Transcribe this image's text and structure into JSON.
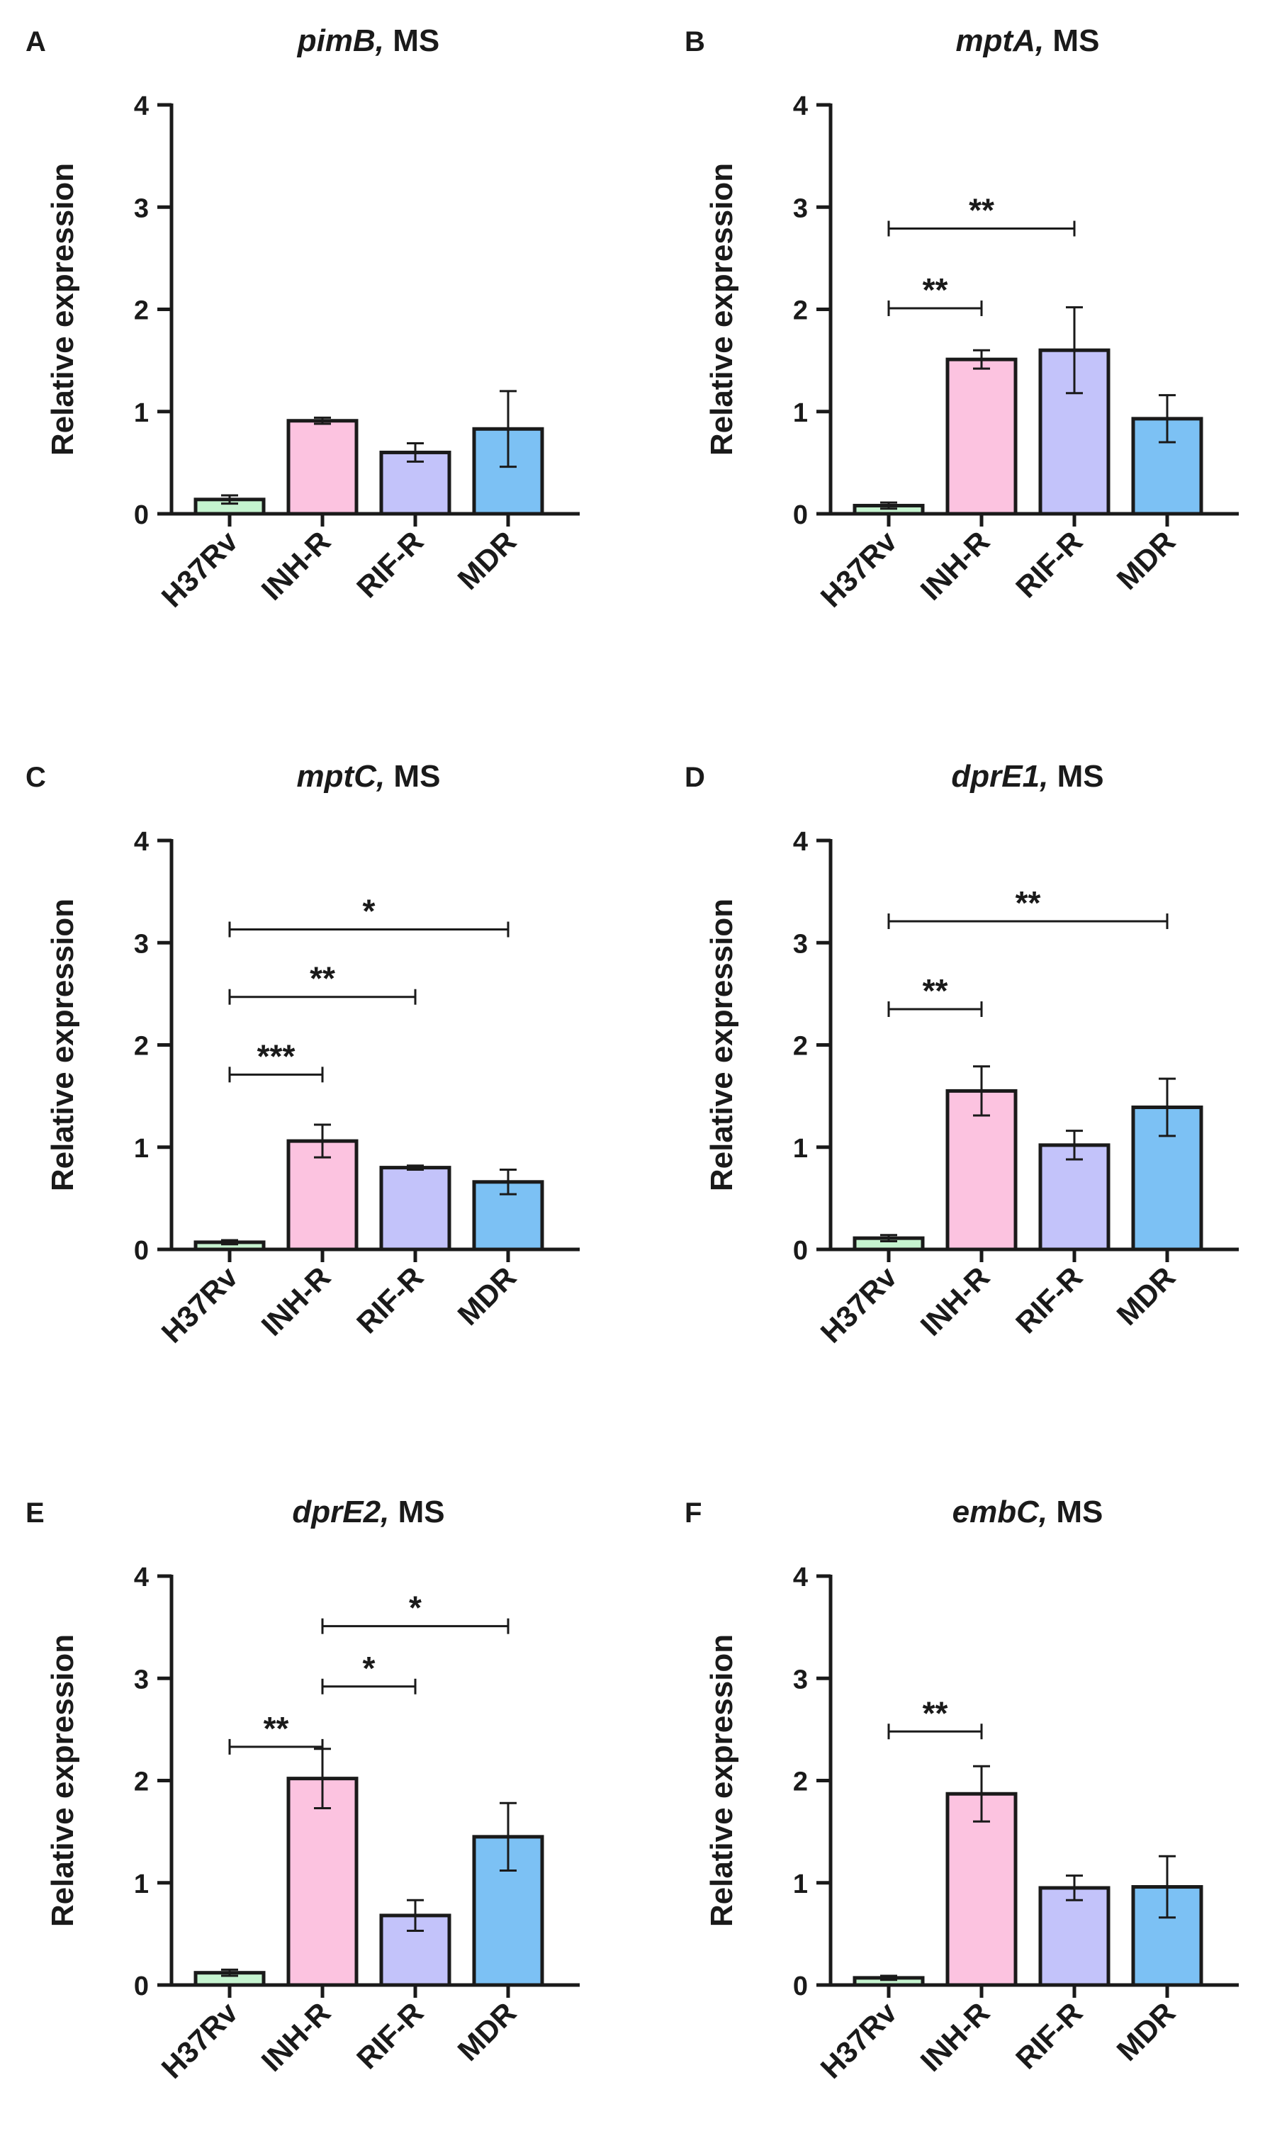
{
  "figure": {
    "ylabel": "Relative expression",
    "categories": [
      "H37Rv",
      "INH-R",
      "RIF-R",
      "MDR"
    ],
    "colors": {
      "H37Rv": "#c5f3cf",
      "INH-R": "#fcc3e0",
      "RIF-R": "#c3c3fa",
      "MDR": "#7cc1f4"
    }
  },
  "chart_data": [
    {
      "panel": "A",
      "type": "bar",
      "gene": "pimB,",
      "suffix": " MS",
      "ylabel": "Relative expression",
      "ylim": [
        0,
        4
      ],
      "yticks": [
        0,
        1,
        2,
        3,
        4
      ],
      "categories": [
        "H37Rv",
        "INH-R",
        "RIF-R",
        "MDR"
      ],
      "values": [
        0.14,
        0.91,
        0.6,
        0.83
      ],
      "errors": [
        0.04,
        0.03,
        0.09,
        0.37
      ],
      "significance": []
    },
    {
      "panel": "B",
      "type": "bar",
      "gene": "mptA,",
      "suffix": " MS",
      "ylabel": "Relative expression",
      "ylim": [
        0,
        4
      ],
      "yticks": [
        0,
        1,
        2,
        3,
        4
      ],
      "categories": [
        "H37Rv",
        "INH-R",
        "RIF-R",
        "MDR"
      ],
      "values": [
        0.08,
        1.51,
        1.6,
        0.93
      ],
      "errors": [
        0.03,
        0.09,
        0.42,
        0.23
      ],
      "significance": [
        {
          "from": 0,
          "to": 1,
          "y": 2.01,
          "label": "**"
        },
        {
          "from": 0,
          "to": 2,
          "y": 2.79,
          "label": "**"
        }
      ]
    },
    {
      "panel": "C",
      "type": "bar",
      "gene": "mptC,",
      "suffix": " MS",
      "ylabel": "Relative expression",
      "ylim": [
        0,
        4
      ],
      "yticks": [
        0,
        1,
        2,
        3,
        4
      ],
      "categories": [
        "H37Rv",
        "INH-R",
        "RIF-R",
        "MDR"
      ],
      "values": [
        0.07,
        1.06,
        0.8,
        0.66
      ],
      "errors": [
        0.02,
        0.16,
        0.02,
        0.12
      ],
      "significance": [
        {
          "from": 0,
          "to": 1,
          "y": 1.71,
          "label": "***"
        },
        {
          "from": 0,
          "to": 2,
          "y": 2.47,
          "label": "**"
        },
        {
          "from": 0,
          "to": 3,
          "y": 3.13,
          "label": "*"
        }
      ]
    },
    {
      "panel": "D",
      "type": "bar",
      "gene": "dprE1,",
      "suffix": " MS",
      "ylabel": "Relative expression",
      "ylim": [
        0,
        4
      ],
      "yticks": [
        0,
        1,
        2,
        3,
        4
      ],
      "categories": [
        "H37Rv",
        "INH-R",
        "RIF-R",
        "MDR"
      ],
      "values": [
        0.11,
        1.55,
        1.02,
        1.39
      ],
      "errors": [
        0.03,
        0.24,
        0.14,
        0.28
      ],
      "significance": [
        {
          "from": 0,
          "to": 1,
          "y": 2.35,
          "label": "**"
        },
        {
          "from": 0,
          "to": 3,
          "y": 3.21,
          "label": "**"
        }
      ]
    },
    {
      "panel": "E",
      "type": "bar",
      "gene": "dprE2,",
      "suffix": " MS",
      "ylabel": "Relative expression",
      "ylim": [
        0,
        4
      ],
      "yticks": [
        0,
        1,
        2,
        3,
        4
      ],
      "categories": [
        "H37Rv",
        "INH-R",
        "RIF-R",
        "MDR"
      ],
      "values": [
        0.12,
        2.02,
        0.68,
        1.45
      ],
      "errors": [
        0.03,
        0.29,
        0.15,
        0.33
      ],
      "significance": [
        {
          "from": 0,
          "to": 1,
          "y": 2.33,
          "label": "**"
        },
        {
          "from": 1,
          "to": 2,
          "y": 2.92,
          "label": "*"
        },
        {
          "from": 1,
          "to": 3,
          "y": 3.51,
          "label": "*"
        }
      ]
    },
    {
      "panel": "F",
      "type": "bar",
      "gene": "embC,",
      "suffix": " MS",
      "ylabel": "Relative expression",
      "ylim": [
        0,
        4
      ],
      "yticks": [
        0,
        1,
        2,
        3,
        4
      ],
      "categories": [
        "H37Rv",
        "INH-R",
        "RIF-R",
        "MDR"
      ],
      "values": [
        0.07,
        1.87,
        0.95,
        0.96
      ],
      "errors": [
        0.02,
        0.27,
        0.12,
        0.3
      ],
      "significance": [
        {
          "from": 0,
          "to": 1,
          "y": 2.48,
          "label": "**"
        }
      ]
    }
  ]
}
